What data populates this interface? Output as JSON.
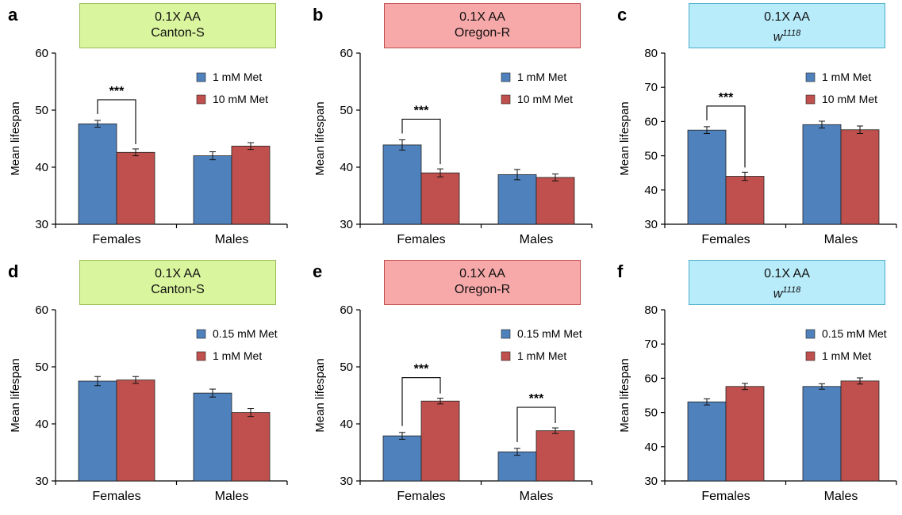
{
  "colors": {
    "series1": "#4F81BD",
    "series2": "#C0504D",
    "axis": "#000000"
  },
  "chart_data": [
    {
      "panel": "a",
      "type": "bar",
      "box_line1": "0.1X AA",
      "box_line2": "Canton-S",
      "box_italic": false,
      "box_sup": "",
      "box_fill": "#D9F59E",
      "box_border": "#9BBB59",
      "ylabel": "Mean lifespan",
      "ylim": [
        30,
        60
      ],
      "yticks": [
        30,
        40,
        50,
        60
      ],
      "categories": [
        "Females",
        "Males"
      ],
      "series": [
        {
          "name": "1 mM Met",
          "values": [
            47.6,
            42.0
          ],
          "errors": [
            0.6,
            0.7
          ]
        },
        {
          "name": "10 mM Met",
          "values": [
            42.6,
            43.7
          ],
          "errors": [
            0.6,
            0.6
          ]
        }
      ],
      "significance": [
        {
          "category": 0,
          "from": 0,
          "to": 1,
          "label": "***"
        }
      ]
    },
    {
      "panel": "b",
      "type": "bar",
      "box_line1": "0.1X AA",
      "box_line2": "Oregon-R",
      "box_italic": false,
      "box_sup": "",
      "box_fill": "#F7A8A8",
      "box_border": "#C0504D",
      "ylabel": "Mean lifespan",
      "ylim": [
        30,
        60
      ],
      "yticks": [
        30,
        40,
        50,
        60
      ],
      "categories": [
        "Females",
        "Males"
      ],
      "series": [
        {
          "name": "1 mM Met",
          "values": [
            43.9,
            38.7
          ],
          "errors": [
            0.9,
            0.9
          ]
        },
        {
          "name": "10 mM Met",
          "values": [
            39.0,
            38.2
          ],
          "errors": [
            0.7,
            0.6
          ]
        }
      ],
      "significance": [
        {
          "category": 0,
          "from": 0,
          "to": 1,
          "label": "***"
        }
      ]
    },
    {
      "panel": "c",
      "type": "bar",
      "box_line1": "0.1X AA",
      "box_line2": "w",
      "box_italic": true,
      "box_sup": "1118",
      "box_fill": "#B9ECFB",
      "box_border": "#4BACC6",
      "ylabel": "Mean lifespan",
      "ylim": [
        30,
        80
      ],
      "yticks": [
        30,
        40,
        50,
        60,
        70,
        80
      ],
      "categories": [
        "Females",
        "Males"
      ],
      "series": [
        {
          "name": "1 mM Met",
          "values": [
            57.5,
            59.1
          ],
          "errors": [
            1.0,
            1.0
          ]
        },
        {
          "name": "10 mM Met",
          "values": [
            44.0,
            57.6
          ],
          "errors": [
            1.2,
            1.1
          ]
        }
      ],
      "significance": [
        {
          "category": 0,
          "from": 0,
          "to": 1,
          "label": "***"
        }
      ]
    },
    {
      "panel": "d",
      "type": "bar",
      "box_line1": "0.1X AA",
      "box_line2": "Canton-S",
      "box_italic": false,
      "box_sup": "",
      "box_fill": "#D9F59E",
      "box_border": "#9BBB59",
      "ylabel": "Mean lifespan",
      "ylim": [
        30,
        60
      ],
      "yticks": [
        30,
        40,
        50,
        60
      ],
      "categories": [
        "Females",
        "Males"
      ],
      "series": [
        {
          "name": "0.15 mM Met",
          "values": [
            47.5,
            45.4
          ],
          "errors": [
            0.8,
            0.7
          ]
        },
        {
          "name": "1 mM Met",
          "values": [
            47.7,
            42.0
          ],
          "errors": [
            0.6,
            0.7
          ]
        }
      ],
      "significance": []
    },
    {
      "panel": "e",
      "type": "bar",
      "box_line1": "0.1X AA",
      "box_line2": "Oregon-R",
      "box_italic": false,
      "box_sup": "",
      "box_fill": "#F7A8A8",
      "box_border": "#C0504D",
      "ylabel": "Mean lifespan",
      "ylim": [
        30,
        60
      ],
      "yticks": [
        30,
        40,
        50,
        60
      ],
      "categories": [
        "Females",
        "Males"
      ],
      "series": [
        {
          "name": "0.15 mM Met",
          "values": [
            37.9,
            35.1
          ],
          "errors": [
            0.6,
            0.6
          ]
        },
        {
          "name": "1 mM Met",
          "values": [
            44.0,
            38.8
          ],
          "errors": [
            0.5,
            0.5
          ]
        }
      ],
      "significance": [
        {
          "category": 0,
          "from": 0,
          "to": 1,
          "label": "***"
        },
        {
          "category": 1,
          "from": 0,
          "to": 1,
          "label": "***"
        }
      ]
    },
    {
      "panel": "f",
      "type": "bar",
      "box_line1": "0.1X AA",
      "box_line2": "w",
      "box_italic": true,
      "box_sup": "1118",
      "box_fill": "#B9ECFB",
      "box_border": "#4BACC6",
      "ylabel": "Mean lifespan",
      "ylim": [
        30,
        80
      ],
      "yticks": [
        30,
        40,
        50,
        60,
        70,
        80
      ],
      "categories": [
        "Females",
        "Males"
      ],
      "series": [
        {
          "name": "0.15 mM Met",
          "values": [
            53.1,
            57.6
          ],
          "errors": [
            0.9,
            0.8
          ]
        },
        {
          "name": "1 mM Met",
          "values": [
            57.6,
            59.2
          ],
          "errors": [
            0.9,
            0.9
          ]
        }
      ],
      "significance": []
    }
  ]
}
